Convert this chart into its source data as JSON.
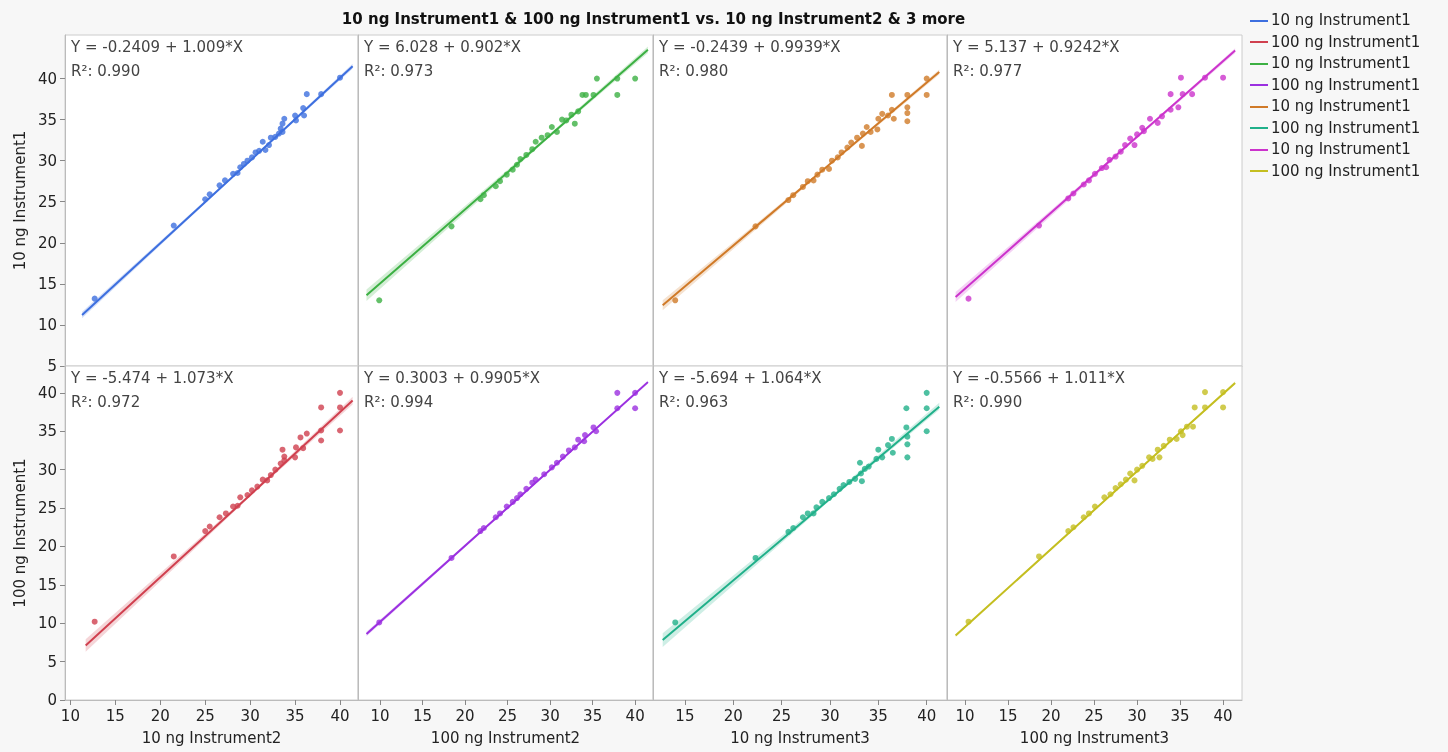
{
  "chart_data": [
    {
      "type": "other",
      "title": "10 ng Instrument1 & 100 ng Instrument1 vs. 10 ng Instrument2 & 3 more"
    },
    {
      "type": "scatter",
      "ylabel": "10 ng Instrument1",
      "xlim": [
        9.4,
        42
      ],
      "ylim": [
        5,
        45.3
      ],
      "xticks": [
        10,
        15,
        20,
        25,
        30,
        35,
        40
      ],
      "yticks": [
        5,
        10,
        15,
        20,
        25,
        30,
        35,
        40
      ],
      "tick_labels": "y",
      "legend": "right",
      "marker": "circle",
      "annotations": [
        "Y = -0.2409 + 1.009*X",
        "R²: 0.990"
      ],
      "series": [
        {
          "name": "10 ng Instrument1",
          "color": "#3d6fdf",
          "x": [
            12.7,
            21.5,
            25.0,
            25.5,
            26.6,
            27.2,
            28.1,
            28.6,
            28.9,
            29.3,
            29.7,
            30.2,
            30.6,
            31.0,
            31.4,
            31.7,
            32.1,
            32.3,
            32.8,
            33.2,
            33.4,
            33.6,
            33.8,
            33.6,
            35.0,
            35.1,
            35.9,
            36.0,
            36.3,
            37.9,
            40.0
          ],
          "values": [
            13.2,
            22.1,
            25.3,
            25.9,
            27.0,
            27.6,
            28.4,
            28.5,
            29.2,
            29.6,
            30.0,
            30.4,
            31.0,
            31.2,
            32.3,
            31.3,
            31.9,
            32.8,
            32.9,
            33.3,
            33.9,
            34.5,
            35.1,
            33.5,
            35.5,
            34.9,
            36.4,
            35.5,
            38.1,
            38.1,
            40.1
          ]
        },
        {
          "type": "line",
          "marker": "none",
          "color": "#3d6fdf",
          "x": [
            11.3,
            30,
            41.4
          ],
          "values": [
            11.2,
            30,
            41.5
          ],
          "lower": [
            10.8,
            29.9,
            41.2
          ],
          "upper": [
            11.6,
            30.1,
            41.8
          ]
        }
      ]
    },
    {
      "type": "scatter",
      "xlim": [
        7.4,
        42.1
      ],
      "ylim": [
        5,
        45.3
      ],
      "xticks": [
        10,
        15,
        20,
        25,
        30,
        35,
        40
      ],
      "yticks": [
        5,
        10,
        15,
        20,
        25,
        30,
        35,
        40
      ],
      "tick_labels": false,
      "legend": "right",
      "marker": "circle",
      "annotations": [
        "Y = 6.028 + 0.902*X",
        "R²: 0.973"
      ],
      "series": [
        {
          "name": "10 ng Instrument1",
          "color": "#3cb043",
          "x": [
            9.9,
            18.4,
            21.8,
            22.2,
            23.6,
            24.1,
            24.9,
            25.6,
            26.1,
            26.5,
            27.2,
            27.9,
            28.3,
            29.0,
            29.7,
            30.2,
            30.8,
            31.4,
            31.9,
            32.5,
            32.9,
            33.3,
            33.8,
            34.2,
            35.1,
            35.5,
            37.9,
            37.9,
            40.0
          ],
          "values": [
            13.0,
            22.0,
            25.3,
            25.8,
            26.9,
            27.5,
            28.3,
            28.9,
            29.5,
            30.2,
            30.7,
            31.4,
            32.3,
            32.8,
            33.1,
            34.1,
            33.5,
            35.0,
            34.9,
            35.6,
            34.5,
            36.0,
            38.0,
            38.0,
            38.0,
            40.0,
            40.0,
            38.0,
            40.0
          ]
        },
        {
          "type": "line",
          "marker": "none",
          "color": "#3cb043",
          "x": [
            8.4,
            30,
            41.5
          ],
          "values": [
            13.6,
            33.1,
            43.5
          ],
          "lower": [
            12.9,
            32.9,
            43.1
          ],
          "upper": [
            14.3,
            33.3,
            43.9
          ]
        }
      ]
    },
    {
      "type": "scatter",
      "xlim": [
        11.7,
        42.1
      ],
      "ylim": [
        5,
        45.3
      ],
      "xticks": [
        15,
        20,
        25,
        30,
        35,
        40
      ],
      "yticks": [
        5,
        10,
        15,
        20,
        25,
        30,
        35,
        40
      ],
      "tick_labels": false,
      "legend": "right",
      "marker": "circle",
      "annotations": [
        "Y = -0.2439 + 0.9939*X",
        "R²: 0.980"
      ],
      "series": [
        {
          "name": "10 ng Instrument1",
          "color": "#d07a28",
          "x": [
            14.0,
            22.3,
            25.7,
            26.2,
            27.2,
            27.7,
            28.3,
            28.7,
            29.2,
            29.9,
            30.2,
            30.8,
            31.2,
            31.8,
            32.2,
            32.8,
            33.3,
            33.4,
            33.8,
            34.2,
            34.9,
            35.0,
            35.4,
            36.0,
            36.4,
            36.4,
            36.6,
            38.0,
            38.0,
            38.0,
            38.0,
            40.0,
            40.0
          ],
          "values": [
            13.0,
            22.0,
            25.2,
            25.8,
            26.8,
            27.5,
            27.6,
            28.3,
            28.9,
            29.0,
            30.0,
            30.4,
            31.0,
            31.6,
            32.2,
            32.8,
            31.8,
            33.3,
            34.1,
            33.5,
            33.8,
            35.1,
            35.7,
            35.5,
            38.0,
            36.2,
            35.1,
            38.0,
            36.5,
            35.8,
            34.8,
            40.0,
            38.0
          ]
        },
        {
          "type": "line",
          "marker": "none",
          "color": "#d07a28",
          "x": [
            12.7,
            30,
            41.3
          ],
          "values": [
            12.4,
            29.6,
            40.8
          ],
          "lower": [
            11.8,
            29.4,
            40.5
          ],
          "upper": [
            13,
            29.7,
            41.1
          ]
        }
      ]
    },
    {
      "type": "scatter",
      "xlim": [
        7.9,
        42.2
      ],
      "ylim": [
        5,
        45.3
      ],
      "xticks": [
        10,
        15,
        20,
        25,
        30,
        35,
        40
      ],
      "yticks": [
        5,
        10,
        15,
        20,
        25,
        30,
        35,
        40
      ],
      "tick_labels": false,
      "legend": "right",
      "marker": "circle",
      "annotations": [
        "Y = 5.137 + 0.9242*X",
        "R²: 0.977"
      ],
      "series": [
        {
          "name": "10 ng Instrument1",
          "color": "#cc33cc",
          "x": [
            10.4,
            18.6,
            22.0,
            22.6,
            23.8,
            24.4,
            25.1,
            25.9,
            26.4,
            26.8,
            27.5,
            28.1,
            28.6,
            29.2,
            29.7,
            30.0,
            30.6,
            30.8,
            31.5,
            32.4,
            32.9,
            33.9,
            33.9,
            34.8,
            35.1,
            35.3,
            36.4,
            37.9,
            40.0
          ],
          "values": [
            13.2,
            22.1,
            25.4,
            26.0,
            27.1,
            27.6,
            28.4,
            29.1,
            29.2,
            30.1,
            30.5,
            31.1,
            31.9,
            32.7,
            31.9,
            33.2,
            34.0,
            33.6,
            35.1,
            34.6,
            35.4,
            36.2,
            38.1,
            36.5,
            40.1,
            38.1,
            38.1,
            40.1,
            40.1
          ]
        },
        {
          "type": "line",
          "marker": "none",
          "color": "#cc33cc",
          "x": [
            8.9,
            30,
            41.4
          ],
          "values": [
            13.4,
            32.9,
            43.4
          ],
          "lower": [
            12.8,
            32.7,
            43.1
          ],
          "upper": [
            14,
            33,
            43.7
          ]
        }
      ]
    },
    {
      "type": "scatter",
      "xlabel": "10 ng Instrument2",
      "ylabel": "100 ng Instrument1",
      "xlim": [
        9.4,
        42
      ],
      "ylim": [
        0,
        43.5
      ],
      "xticks": [
        10,
        15,
        20,
        25,
        30,
        35,
        40
      ],
      "yticks": [
        0,
        5,
        10,
        15,
        20,
        25,
        30,
        35,
        40
      ],
      "legend": "right",
      "marker": "circle",
      "annotations": [
        "Y = -5.474 + 1.073*X",
        "R²: 0.972"
      ],
      "series": [
        {
          "name": "100 ng Instrument1",
          "color": "#d0404f",
          "x": [
            12.7,
            21.5,
            25.0,
            25.5,
            26.6,
            27.3,
            28.1,
            28.6,
            28.9,
            29.7,
            30.2,
            30.8,
            31.4,
            31.9,
            32.3,
            32.8,
            33.4,
            33.6,
            33.8,
            33.8,
            35.0,
            35.1,
            35.6,
            35.9,
            36.3,
            37.9,
            37.9,
            37.9,
            40.0,
            40.0,
            40.0
          ],
          "values": [
            10.2,
            18.7,
            22.0,
            22.6,
            23.8,
            24.3,
            25.2,
            25.3,
            26.4,
            26.7,
            27.3,
            27.8,
            28.7,
            28.6,
            29.3,
            30.0,
            30.8,
            32.6,
            31.7,
            31.2,
            31.6,
            32.9,
            34.2,
            32.8,
            34.7,
            38.1,
            35.1,
            33.8,
            40.0,
            38.1,
            35.1
          ]
        },
        {
          "type": "line",
          "marker": "none",
          "color": "#d0404f",
          "x": [
            11.7,
            30,
            41.4
          ],
          "values": [
            7.1,
            26.7,
            39
          ],
          "lower": [
            6.3,
            26.5,
            38.5
          ],
          "upper": [
            7.9,
            26.9,
            39.5
          ]
        }
      ]
    },
    {
      "type": "scatter",
      "xlabel": "100 ng Instrument2",
      "xlim": [
        7.4,
        42.1
      ],
      "ylim": [
        0,
        43.5
      ],
      "xticks": [
        10,
        15,
        20,
        25,
        30,
        35,
        40
      ],
      "yticks": [
        0,
        5,
        10,
        15,
        20,
        25,
        30,
        35,
        40
      ],
      "tick_labels": "x",
      "legend": "right",
      "marker": "circle",
      "annotations": [
        "Y = 0.3003 + 0.9905*X",
        "R²: 0.994"
      ],
      "series": [
        {
          "name": "100 ng Instrument1",
          "color": "#9b30e0",
          "x": [
            9.9,
            18.4,
            21.8,
            22.2,
            23.6,
            24.1,
            24.9,
            25.6,
            26.1,
            26.5,
            27.2,
            27.9,
            28.3,
            29.3,
            30.2,
            30.8,
            31.5,
            32.2,
            32.9,
            33.3,
            34.0,
            34.1,
            35.1,
            35.4,
            37.9,
            37.9,
            40.0,
            40.0
          ],
          "values": [
            10.1,
            18.5,
            22.0,
            22.4,
            23.8,
            24.3,
            25.2,
            25.8,
            26.3,
            26.8,
            27.5,
            28.3,
            28.7,
            29.4,
            30.3,
            30.9,
            31.7,
            32.5,
            32.9,
            33.9,
            33.7,
            34.5,
            35.5,
            35.0,
            40.0,
            38.0,
            40.0,
            38.0
          ]
        },
        {
          "type": "line",
          "marker": "none",
          "color": "#9b30e0",
          "x": [
            8.4,
            30,
            41.5
          ],
          "values": [
            8.6,
            30,
            41.4
          ],
          "lower": [
            8.3,
            29.9,
            41.2
          ],
          "upper": [
            8.9,
            30.1,
            41.6
          ]
        }
      ]
    },
    {
      "type": "scatter",
      "xlabel": "10 ng Instrument3",
      "xlim": [
        11.7,
        42.1
      ],
      "ylim": [
        0,
        43.5
      ],
      "xticks": [
        15,
        20,
        25,
        30,
        35,
        40
      ],
      "yticks": [
        0,
        5,
        10,
        15,
        20,
        25,
        30,
        35,
        40
      ],
      "tick_labels": "x",
      "legend": "right",
      "marker": "circle",
      "annotations": [
        "Y = -5.694 + 1.064*X",
        "R²: 0.963"
      ],
      "series": [
        {
          "name": "100 ng Instrument1",
          "color": "#20b08a",
          "x": [
            14.0,
            22.3,
            25.7,
            26.2,
            27.2,
            27.7,
            28.3,
            28.6,
            29.2,
            29.9,
            30.4,
            31.0,
            31.4,
            32.0,
            32.6,
            33.1,
            33.3,
            33.2,
            33.6,
            34.0,
            34.8,
            35.0,
            35.4,
            36.0,
            36.4,
            36.5,
            37.9,
            37.9,
            38.0,
            38.0,
            38.0,
            40.0,
            40.0,
            40.0
          ],
          "values": [
            10.1,
            18.5,
            21.9,
            22.4,
            23.8,
            24.3,
            24.3,
            25.1,
            25.8,
            26.3,
            26.8,
            27.5,
            28.0,
            28.4,
            28.8,
            30.9,
            28.5,
            29.5,
            30.1,
            30.4,
            31.4,
            32.6,
            31.6,
            33.2,
            34.0,
            32.2,
            38.0,
            35.5,
            34.3,
            33.3,
            31.6,
            40.0,
            38.0,
            35.0
          ]
        },
        {
          "type": "line",
          "marker": "none",
          "color": "#20b08a",
          "x": [
            12.7,
            30,
            41.3
          ],
          "values": [
            7.8,
            26.2,
            38.2
          ],
          "lower": [
            6.9,
            26,
            37.8
          ],
          "upper": [
            8.7,
            26.5,
            38.7
          ]
        }
      ]
    },
    {
      "type": "scatter",
      "xlabel": "100 ng Instrument3",
      "xlim": [
        7.9,
        42.2
      ],
      "ylim": [
        0,
        43.5
      ],
      "xticks": [
        10,
        15,
        20,
        25,
        30,
        35,
        40
      ],
      "yticks": [
        0,
        5,
        10,
        15,
        20,
        25,
        30,
        35,
        40
      ],
      "tick_labels": "x",
      "legend": "right",
      "marker": "circle",
      "annotations": [
        "Y = -0.5566 + 1.011*X",
        "R²: 0.990"
      ],
      "series": [
        {
          "name": "100 ng Instrument1",
          "color": "#c4be20",
          "x": [
            10.4,
            18.6,
            22.0,
            22.6,
            23.8,
            24.4,
            25.1,
            26.2,
            26.9,
            27.5,
            28.1,
            28.7,
            29.2,
            29.7,
            30.0,
            30.6,
            31.4,
            31.8,
            32.4,
            32.6,
            33.1,
            33.8,
            34.6,
            35.1,
            35.3,
            35.8,
            36.5,
            36.7,
            37.9,
            37.9,
            40.0,
            40.0
          ],
          "values": [
            10.2,
            18.7,
            22.0,
            22.5,
            23.8,
            24.3,
            25.2,
            26.4,
            26.8,
            27.6,
            28.1,
            28.7,
            29.5,
            28.6,
            30.0,
            30.5,
            31.6,
            31.4,
            32.6,
            31.6,
            33.1,
            33.9,
            34.0,
            35.0,
            34.5,
            35.6,
            35.6,
            38.1,
            40.1,
            38.1,
            40.1,
            38.1
          ]
        },
        {
          "type": "line",
          "marker": "none",
          "color": "#c4be20",
          "x": [
            8.9,
            30,
            41.4
          ],
          "values": [
            8.4,
            29.8,
            41.3
          ],
          "lower": [
            8.2,
            29.7,
            41.1
          ],
          "upper": [
            8.6,
            29.9,
            41.5
          ]
        }
      ]
    }
  ]
}
